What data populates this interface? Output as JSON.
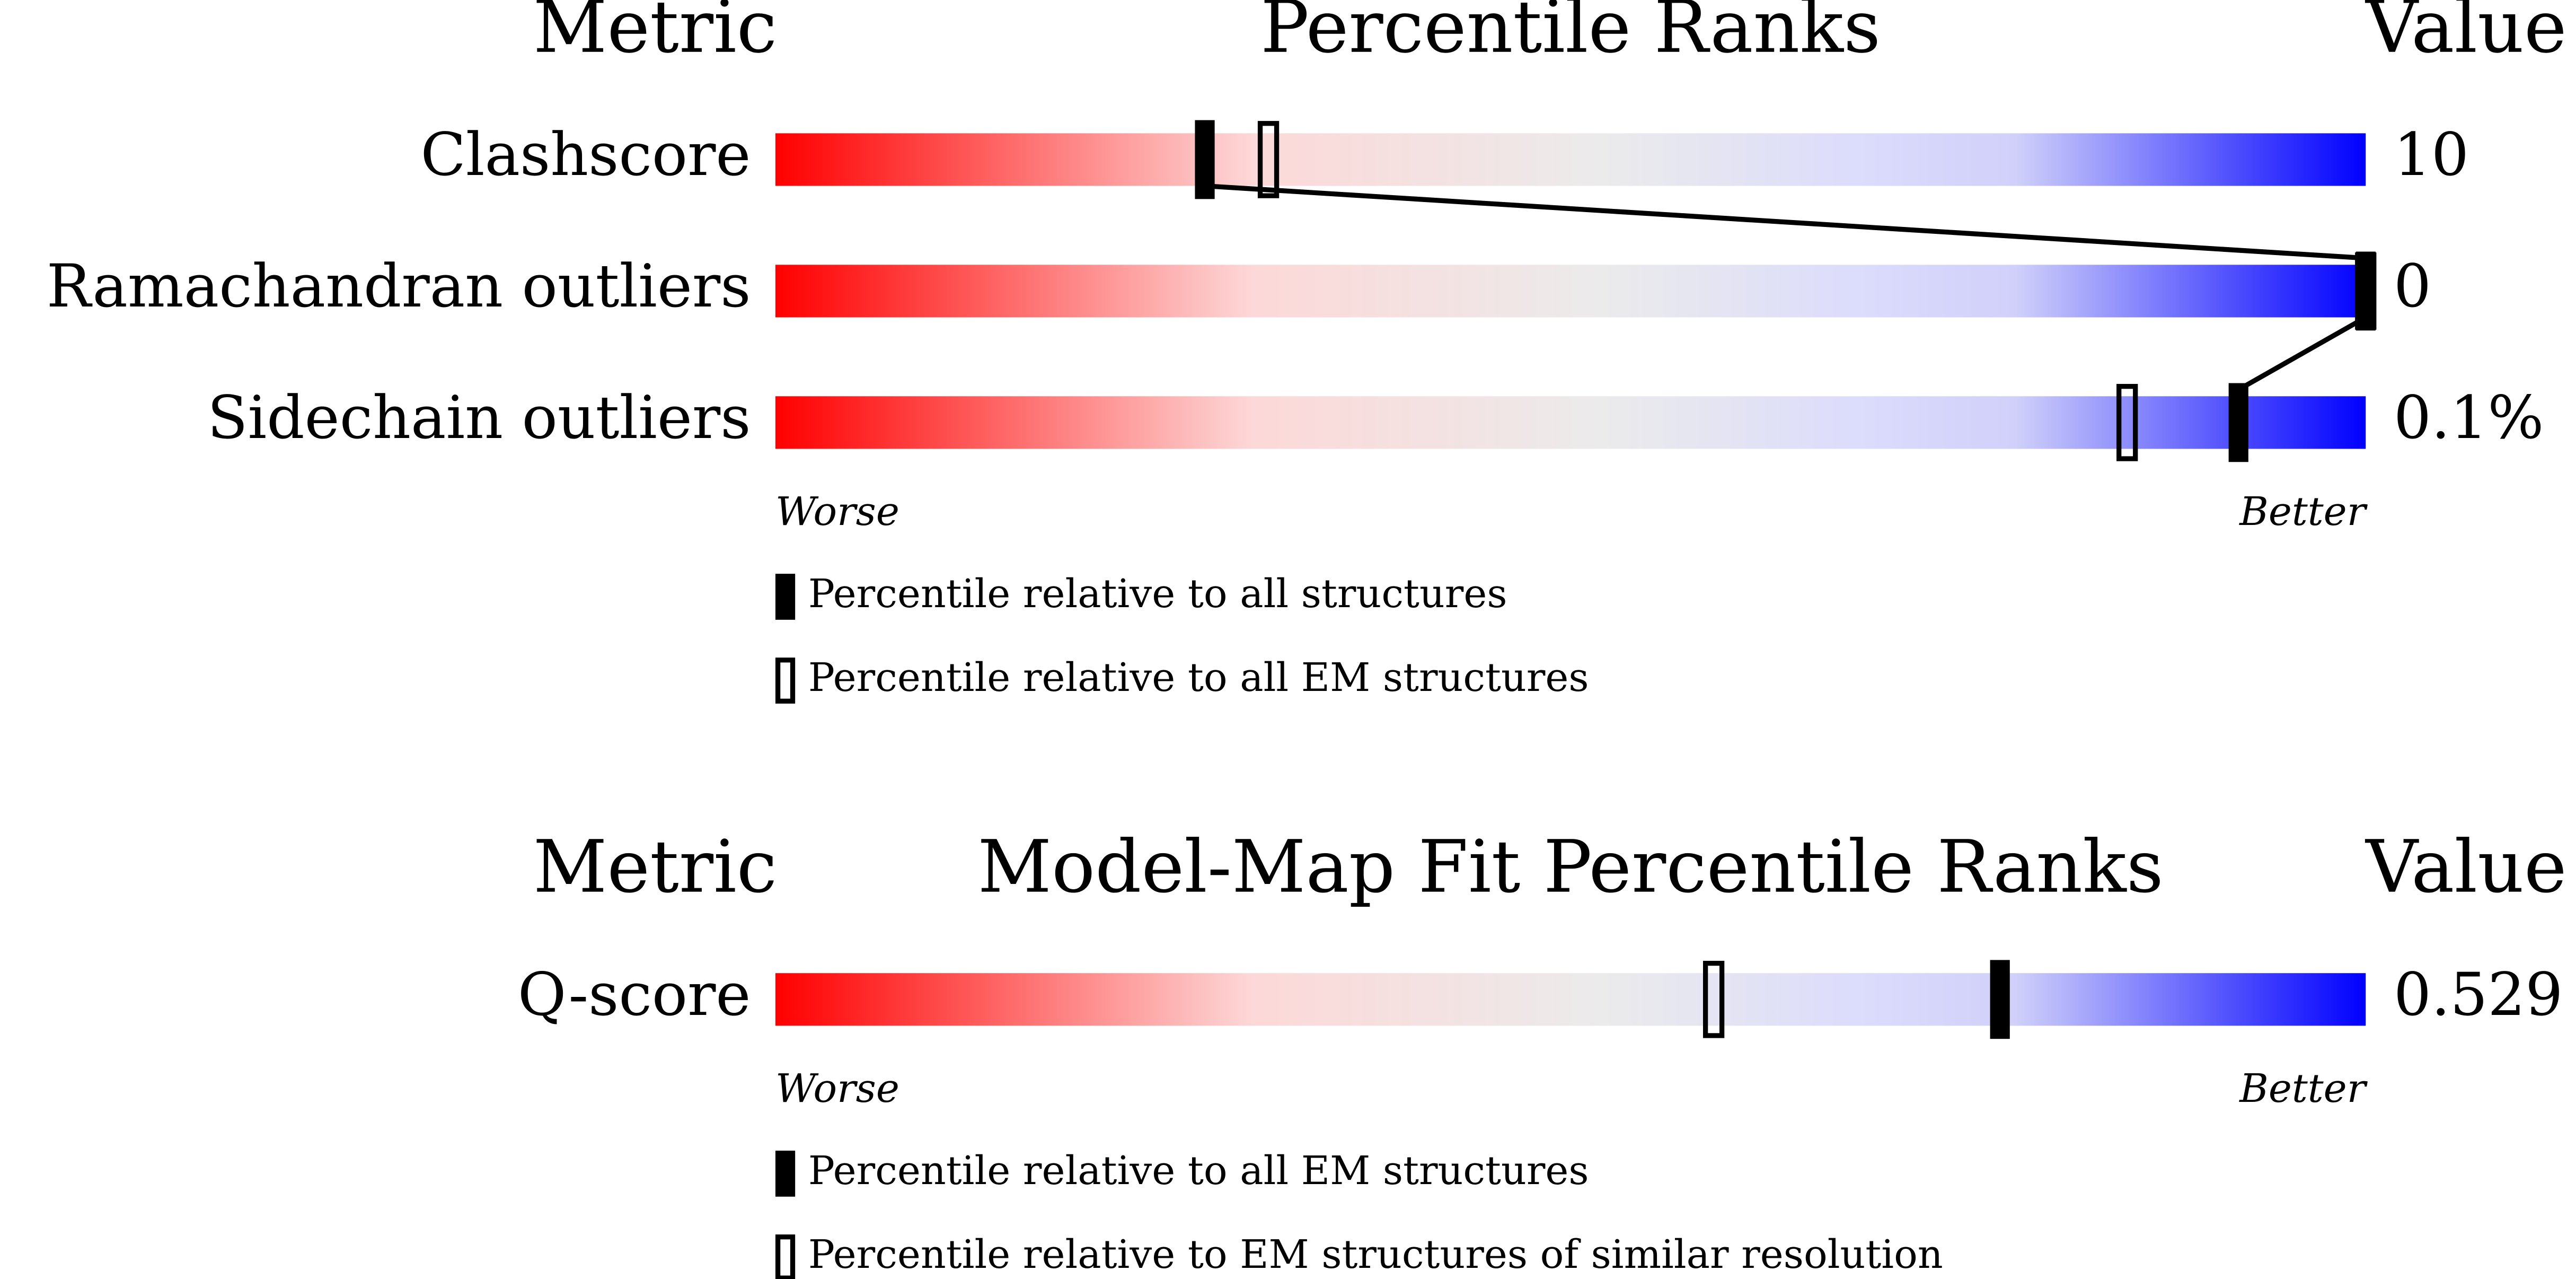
{
  "panels": [
    {
      "header": {
        "metric": "Metric",
        "title": "Percentile Ranks",
        "value": "Value"
      },
      "xlim": [
        0,
        100
      ],
      "rows": [
        {
          "label": "Clashscore",
          "value": "10",
          "percentiles": [
            27,
            31
          ]
        },
        {
          "label": "Ramachandran outliers",
          "value": "0",
          "percentiles": [
            100,
            100
          ]
        },
        {
          "label": "Sidechain outliers",
          "value": "0.1%",
          "percentiles": [
            92,
            85
          ]
        }
      ],
      "worse": "Worse",
      "better": "Better",
      "legend": [
        "Percentile relative to all structures",
        "Percentile relative to all EM structures"
      ]
    },
    {
      "header": {
        "metric": "Metric",
        "title": "Model-Map Fit Percentile Ranks",
        "value": "Value"
      },
      "xlim": [
        0,
        100
      ],
      "rows": [
        {
          "label": "Q-score",
          "value": "0.529",
          "percentiles": [
            77,
            59
          ]
        }
      ],
      "worse": "Worse",
      "better": "Better",
      "legend": [
        "Percentile relative to all EM structures",
        "Percentile relative to EM structures of similar resolution"
      ]
    }
  ]
}
